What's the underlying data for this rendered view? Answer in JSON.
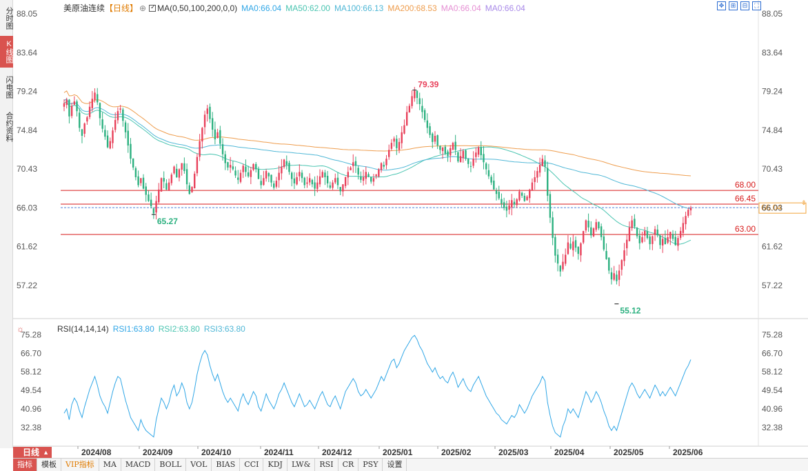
{
  "left_tabs": [
    {
      "label": "分时图",
      "active": false
    },
    {
      "label": "K线图",
      "active": true
    },
    {
      "label": "闪电图",
      "active": false
    },
    {
      "label": "合约资料",
      "active": false
    }
  ],
  "legend": {
    "title": "美原油连续",
    "period": "【日线】",
    "ma_params": "MA(0,50,100,200,0,0)",
    "ma0": "MA0:66.04",
    "ma50": "MA50:62.00",
    "ma100": "MA100:66.13",
    "ma200": "MA200:68.53",
    "ma0b": "MA0:66.04",
    "ma0c": "MA0:66.04"
  },
  "colors": {
    "up": "#e8405a",
    "down": "#2bb07f",
    "ma50": "#49c4b0",
    "ma100": "#4fb7d6",
    "ma200": "#ee9c4c",
    "level_line": "#d71a1a",
    "rsi": "#2fa6e6",
    "axis_text": "#555555",
    "current_price_box": "#f2a33a"
  },
  "rsi_legend": {
    "label": "RSI(14,14,14)",
    "rsi1": "RSI1:63.80",
    "rsi2": "RSI2:63.80",
    "rsi3": "RSI3:63.80"
  },
  "price_axis_ticks": [
    "88.05",
    "83.64",
    "79.24",
    "74.84",
    "70.43",
    "66.03",
    "61.62",
    "57.22"
  ],
  "rsi_axis_ticks": [
    "75.28",
    "66.70",
    "58.12",
    "49.54",
    "40.96",
    "32.38"
  ],
  "date_labels": [
    "2024/08",
    "2024/09",
    "2024/10",
    "2024/11",
    "2024/12",
    "2025/01",
    "2025/02",
    "2025/03",
    "2025/04",
    "2025/05",
    "2025/06"
  ],
  "levels": [
    {
      "value": 68.0,
      "label": "68.00"
    },
    {
      "value": 66.45,
      "label": "66.45"
    },
    {
      "value": 63.0,
      "label": "63.00"
    }
  ],
  "current_price": {
    "value": 66.04,
    "label": "66.04"
  },
  "annotations": [
    {
      "label": "79.39",
      "value": 79.39,
      "kind": "high"
    },
    {
      "label": "65.27",
      "value": 65.27,
      "kind": "low"
    },
    {
      "label": "55.12",
      "value": 55.12,
      "kind": "low"
    }
  ],
  "period_button": {
    "label": "日线",
    "arrow": "▲"
  },
  "bottom_tabs": [
    {
      "label": "指标",
      "active": true,
      "vip": false
    },
    {
      "label": "模板",
      "active": false,
      "vip": false
    },
    {
      "label": "VIP指标",
      "active": false,
      "vip": true
    },
    {
      "label": "MA",
      "active": false,
      "vip": false
    },
    {
      "label": "MACD",
      "active": false,
      "vip": false
    },
    {
      "label": "BOLL",
      "active": false,
      "vip": false
    },
    {
      "label": "VOL",
      "active": false,
      "vip": false
    },
    {
      "label": "BIAS",
      "active": false,
      "vip": false
    },
    {
      "label": "CCI",
      "active": false,
      "vip": false
    },
    {
      "label": "KDJ",
      "active": false,
      "vip": false
    },
    {
      "label": "LW&",
      "active": false,
      "vip": false
    },
    {
      "label": "RSI",
      "active": false,
      "vip": false
    },
    {
      "label": "CR",
      "active": false,
      "vip": false
    },
    {
      "label": "PSY",
      "active": false,
      "vip": false
    },
    {
      "label": "设置",
      "active": false,
      "vip": false
    }
  ],
  "tool_icons": [
    "move-icon",
    "expand-icon",
    "restore-icon",
    "fullscreen-icon"
  ],
  "chart_data": {
    "type": "candlestick",
    "price_range": [
      55.12,
      79.39
    ],
    "rsi_range": [
      28,
      78
    ],
    "closes": [
      77.9,
      78.3,
      76.4,
      77.6,
      78.1,
      77.0,
      75.1,
      74.2,
      75.6,
      76.3,
      77.5,
      78.4,
      79.1,
      78.0,
      76.2,
      75.0,
      74.1,
      72.9,
      73.6,
      74.8,
      76.0,
      77.0,
      77.3,
      75.9,
      74.6,
      73.1,
      71.6,
      70.6,
      69.5,
      68.6,
      69.4,
      68.2,
      67.5,
      66.8,
      66.2,
      65.4,
      66.8,
      68.1,
      69.4,
      69.0,
      68.1,
      68.9,
      69.8,
      70.7,
      69.5,
      70.4,
      71.1,
      70.2,
      68.7,
      67.6,
      68.4,
      69.9,
      71.8,
      73.6,
      75.1,
      76.6,
      77.3,
      76.1,
      74.9,
      73.8,
      74.6,
      73.3,
      72.1,
      71.1,
      70.6,
      70.9,
      70.4,
      69.7,
      69.2,
      70.0,
      70.8,
      70.1,
      69.6,
      70.3,
      71.0,
      70.4,
      69.3,
      68.6,
      69.4,
      70.2,
      69.6,
      68.9,
      68.3,
      69.1,
      70.0,
      70.7,
      71.5,
      70.9,
      70.1,
      69.3,
      68.8,
      69.5,
      70.1,
      69.4,
      68.6,
      68.9,
      69.4,
      68.7,
      68.2,
      68.9,
      69.6,
      70.1,
      69.5,
      68.8,
      68.3,
      68.9,
      69.4,
      68.6,
      67.9,
      68.7,
      69.5,
      70.1,
      70.6,
      71.2,
      70.8,
      69.8,
      69.2,
      69.5,
      70.1,
      69.6,
      69.0,
      69.4,
      69.8,
      70.4,
      71.1,
      70.7,
      71.6,
      72.6,
      73.4,
      73.9,
      72.8,
      73.5,
      74.6,
      75.4,
      76.9,
      77.6,
      78.7,
      79.3,
      78.5,
      77.8,
      76.9,
      76.0,
      75.1,
      74.3,
      73.5,
      74.2,
      73.1,
      72.6,
      72.9,
      72.2,
      71.9,
      72.8,
      73.4,
      72.6,
      71.3,
      71.9,
      72.5,
      71.6,
      71.0,
      70.7,
      71.6,
      72.3,
      72.9,
      72.0,
      71.2,
      70.4,
      69.6,
      68.9,
      68.1,
      67.6,
      67.1,
      66.5,
      66.0,
      65.7,
      66.3,
      66.9,
      66.4,
      67.0,
      67.9,
      67.4,
      66.8,
      67.3,
      68.1,
      68.9,
      69.5,
      70.2,
      70.9,
      71.6,
      70.7,
      67.4,
      64.9,
      62.6,
      60.6,
      59.7,
      58.8,
      59.9,
      60.7,
      62.1,
      61.4,
      62.2,
      61.5,
      60.8,
      62.0,
      63.4,
      64.6,
      63.8,
      62.9,
      63.7,
      64.4,
      63.7,
      62.7,
      61.3,
      60.2,
      58.9,
      57.9,
      58.6,
      57.7,
      58.9,
      60.1,
      61.2,
      62.4,
      63.8,
      64.6,
      63.9,
      62.8,
      62.0,
      62.7,
      63.4,
      62.6,
      61.9,
      62.8,
      63.6,
      62.9,
      61.8,
      62.5,
      61.9,
      62.7,
      63.3,
      62.5,
      61.8,
      62.6,
      63.4,
      64.3,
      65.1,
      65.8,
      66.04
    ],
    "rsi": [
      39,
      41,
      36,
      43,
      46,
      44,
      40,
      37,
      42,
      46,
      50,
      53,
      56,
      52,
      47,
      44,
      42,
      39,
      44,
      49,
      53,
      56,
      55,
      50,
      45,
      41,
      37,
      35,
      33,
      31,
      36,
      33,
      31,
      30,
      29,
      28,
      36,
      41,
      46,
      44,
      41,
      44,
      49,
      52,
      47,
      49,
      53,
      50,
      44,
      41,
      44,
      50,
      57,
      62,
      66,
      68,
      66,
      61,
      57,
      54,
      57,
      53,
      49,
      46,
      44,
      46,
      44,
      42,
      40,
      45,
      48,
      45,
      43,
      46,
      49,
      47,
      42,
      40,
      44,
      48,
      45,
      43,
      41,
      44,
      48,
      50,
      53,
      50,
      47,
      44,
      42,
      45,
      48,
      45,
      42,
      43,
      45,
      43,
      41,
      44,
      47,
      49,
      46,
      43,
      42,
      45,
      47,
      44,
      41,
      45,
      49,
      51,
      53,
      55,
      53,
      49,
      47,
      48,
      50,
      48,
      46,
      48,
      50,
      53,
      56,
      54,
      57,
      60,
      63,
      64,
      60,
      62,
      65,
      68,
      70,
      72,
      74,
      75,
      73,
      70,
      68,
      65,
      62,
      60,
      58,
      60,
      57,
      55,
      56,
      54,
      53,
      56,
      58,
      55,
      51,
      53,
      55,
      52,
      50,
      49,
      52,
      54,
      56,
      53,
      50,
      47,
      45,
      43,
      41,
      39,
      38,
      36,
      35,
      34,
      36,
      38,
      37,
      39,
      43,
      41,
      39,
      41,
      44,
      47,
      49,
      51,
      53,
      56,
      54,
      44,
      38,
      33,
      30,
      29,
      28,
      33,
      36,
      41,
      39,
      41,
      39,
      37,
      41,
      45,
      49,
      47,
      44,
      46,
      49,
      47,
      44,
      40,
      37,
      33,
      31,
      33,
      31,
      35,
      39,
      43,
      47,
      51,
      53,
      51,
      48,
      46,
      48,
      50,
      48,
      46,
      49,
      52,
      50,
      47,
      49,
      47,
      49,
      51,
      49,
      47,
      50,
      53,
      56,
      59,
      61,
      63.8
    ]
  }
}
